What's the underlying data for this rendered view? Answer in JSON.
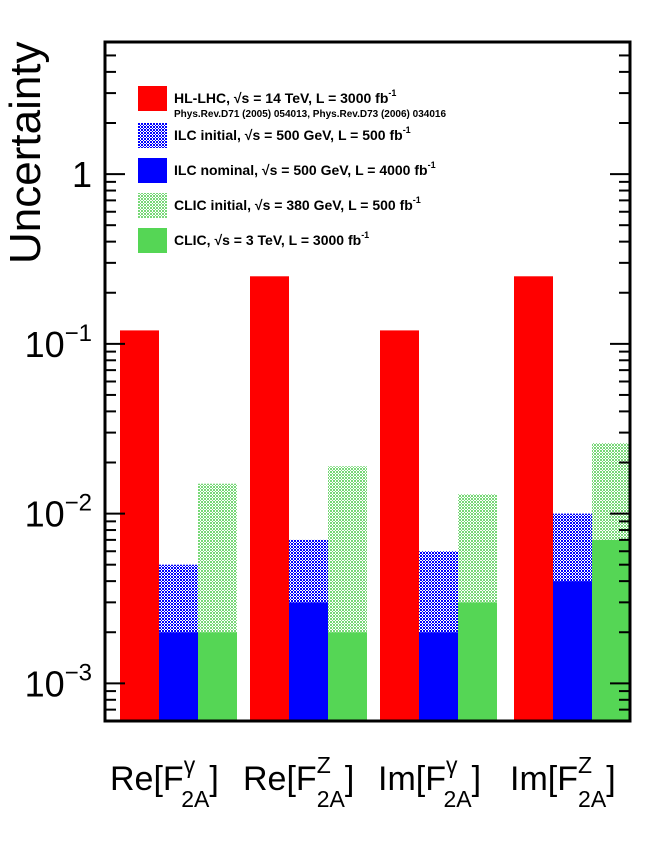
{
  "chart_data": {
    "type": "bar",
    "ylabel": "Uncertainty",
    "yscale": "log",
    "ylim": [
      0.0006,
      6
    ],
    "grid": false,
    "legend_position": "top-left",
    "yticks": [
      {
        "value": 1,
        "base": "1",
        "exp": ""
      },
      {
        "value": 0.1,
        "base": "10",
        "exp": "−1"
      },
      {
        "value": 0.01,
        "base": "10",
        "exp": "−2"
      },
      {
        "value": 0.001,
        "base": "10",
        "exp": "−3"
      }
    ],
    "categories": [
      {
        "pre": "Re[F",
        "sup": "γ",
        "sub": "2A",
        "post": "]"
      },
      {
        "pre": "Re[F",
        "sup": "Z",
        "sub": "2A",
        "post": "]"
      },
      {
        "pre": "Im[F",
        "sup": "γ",
        "sub": "2A",
        "post": "]"
      },
      {
        "pre": "Im[F",
        "sup": "Z",
        "sub": "2A",
        "post": "]"
      }
    ],
    "bars": [
      {
        "category": 0,
        "group": "HL-LHC",
        "initial": null,
        "nominal": 0.12
      },
      {
        "category": 0,
        "group": "ILC",
        "initial": 0.005,
        "nominal": 0.002
      },
      {
        "category": 0,
        "group": "CLIC",
        "initial": 0.015,
        "nominal": 0.002
      },
      {
        "category": 1,
        "group": "HL-LHC",
        "initial": null,
        "nominal": 0.25
      },
      {
        "category": 1,
        "group": "ILC",
        "initial": 0.007,
        "nominal": 0.003
      },
      {
        "category": 1,
        "group": "CLIC",
        "initial": 0.019,
        "nominal": 0.002
      },
      {
        "category": 2,
        "group": "HL-LHC",
        "initial": null,
        "nominal": 0.12
      },
      {
        "category": 2,
        "group": "ILC",
        "initial": 0.006,
        "nominal": 0.002
      },
      {
        "category": 2,
        "group": "CLIC",
        "initial": 0.013,
        "nominal": 0.003
      },
      {
        "category": 3,
        "group": "HL-LHC",
        "initial": null,
        "nominal": 0.25
      },
      {
        "category": 3,
        "group": "ILC",
        "initial": 0.01,
        "nominal": 0.004
      },
      {
        "category": 3,
        "group": "CLIC",
        "initial": 0.026,
        "nominal": 0.007
      }
    ],
    "colors": {
      "hl_lhc": "#ff0000",
      "ilc": "#0000ff",
      "clic": "#55d655",
      "ilc_hatch_dot": "#2a2aee",
      "clic_hatch_dot": "#8fe08f"
    },
    "legend": [
      {
        "key": "hl_lhc",
        "pattern": "solid",
        "text": "HL-LHC, √s = 14 TeV, L = 3000 fb",
        "sup": "-1",
        "sub_note": "Phys.Rev.D71 (2005) 054013,  Phys.Rev.D73 (2006) 034016"
      },
      {
        "key": "ilc",
        "pattern": "hatched",
        "text": "ILC initial, √s = 500 GeV, L = 500 fb",
        "sup": "-1"
      },
      {
        "key": "ilc",
        "pattern": "solid",
        "text": "ILC nominal, √s = 500 GeV, L = 4000 fb",
        "sup": "-1"
      },
      {
        "key": "clic",
        "pattern": "hatched",
        "text": "CLIC initial, √s = 380 GeV, L = 500 fb",
        "sup": "-1"
      },
      {
        "key": "clic",
        "pattern": "solid",
        "text": "CLIC, √s = 3 TeV, L = 3000 fb",
        "sup": "-1"
      }
    ]
  }
}
